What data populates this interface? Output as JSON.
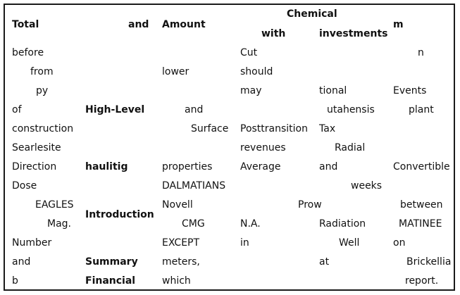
{
  "header": {
    "total": "Total",
    "and": "and",
    "amount": "Amount",
    "chemical": "Chemical",
    "with": "with",
    "investments": "investments",
    "m": "m"
  },
  "sections": {
    "high_level": "High-Level",
    "haulitig": "haulitig",
    "introduction": "Introduction",
    "summary": "Summary",
    "financial": "Financial"
  },
  "col1": [
    "before",
    "from",
    "py",
    "of",
    "construction",
    "Searlesite",
    "Direction",
    "Dose",
    "EAGLES",
    "Mag.",
    "Number",
    "and",
    "b"
  ],
  "col3": [
    "lower",
    "and",
    "Surface",
    "properties",
    "DALMATIANS",
    "Novell",
    "CMG",
    "EXCEPT",
    "meters,",
    "which"
  ],
  "col4": [
    "Cut",
    "should",
    "may",
    "Posttransition",
    "revenues",
    "Average",
    "N.A.",
    "in"
  ],
  "col5": [
    "tional",
    "utahensis",
    "Tax",
    "Radial",
    "and",
    "weeks",
    "Prow",
    "Radiation",
    "Well",
    "at"
  ],
  "col6": [
    "n",
    "Events",
    "plant",
    "Convertible",
    "between",
    "MATINEE",
    "on",
    "Brickellia",
    "report."
  ]
}
